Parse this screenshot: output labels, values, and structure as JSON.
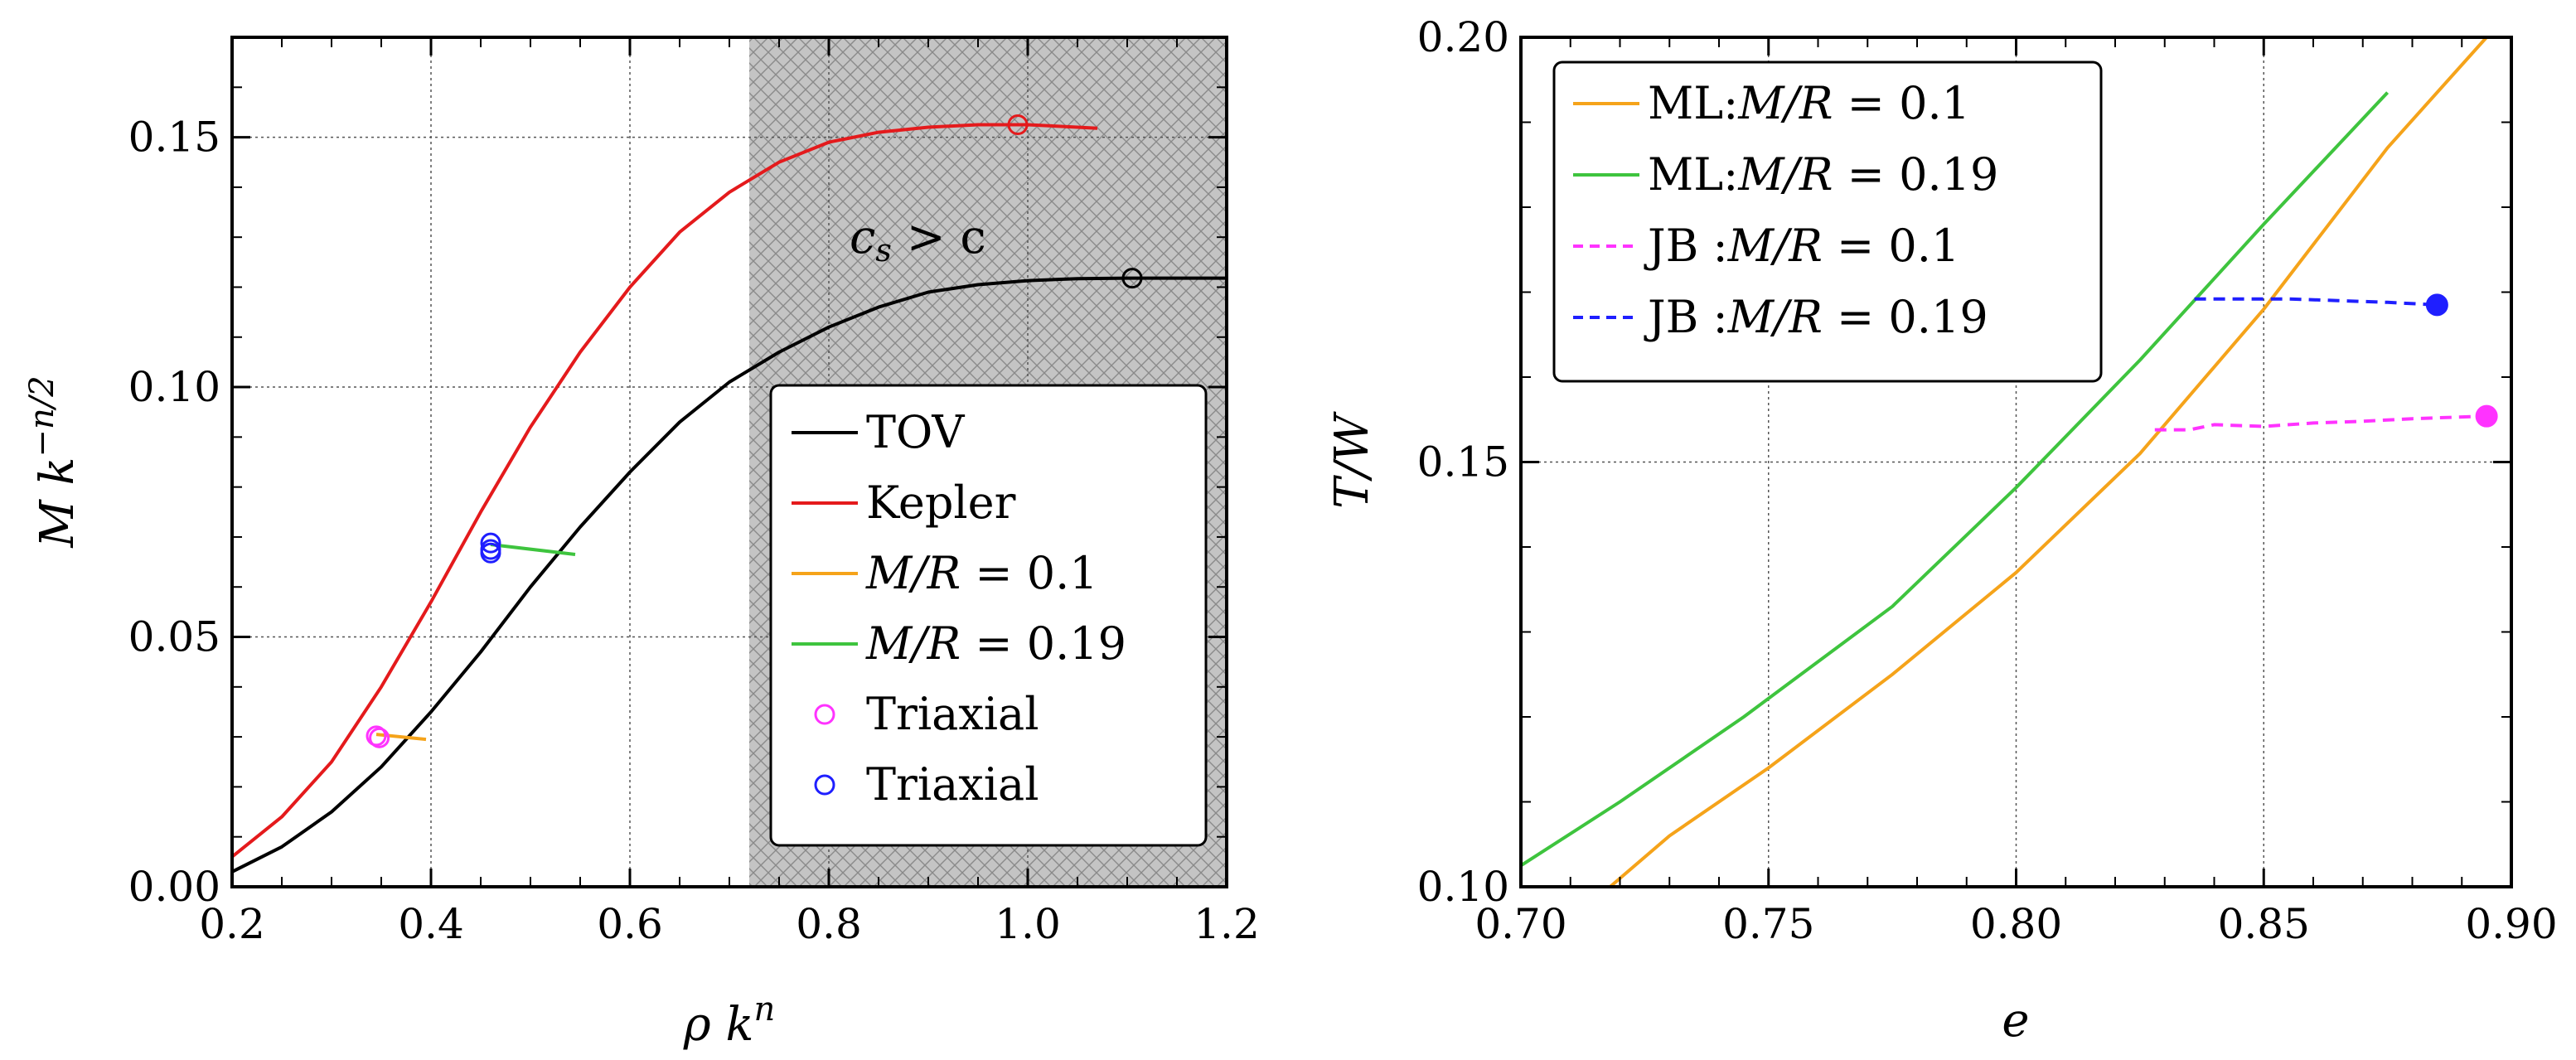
{
  "chart_data": [
    {
      "type": "line",
      "xlabel": "ρ k",
      "xlabel_sup": "n",
      "ylabel": "M k",
      "ylabel_sup": "−n/2",
      "xlim": [
        0.2,
        1.2
      ],
      "ylim": [
        0.0,
        0.17
      ],
      "grid": true,
      "xticks": [
        0.2,
        0.4,
        0.6,
        0.8,
        1.0,
        1.2
      ],
      "xtick_labels": [
        "0.2",
        "0.4",
        "0.6",
        "0.8",
        "1.0",
        "1.2"
      ],
      "yticks": [
        0.0,
        0.05,
        0.1,
        0.15
      ],
      "ytick_labels": [
        "0.00",
        "0.05",
        "0.10",
        "0.15"
      ],
      "shaded_region": {
        "x": [
          0.72,
          1.2
        ],
        "label_main": "c",
        "label_sub": "s",
        "label_rest": " > c"
      },
      "series": [
        {
          "name": "TOV",
          "style": "solid",
          "color": "#000000",
          "x": [
            0.2,
            0.25,
            0.3,
            0.35,
            0.4,
            0.45,
            0.5,
            0.55,
            0.6,
            0.65,
            0.7,
            0.75,
            0.8,
            0.85,
            0.9,
            0.95,
            1.0,
            1.05,
            1.1,
            1.15,
            1.2
          ],
          "y": [
            0.003,
            0.008,
            0.015,
            0.024,
            0.035,
            0.047,
            0.06,
            0.072,
            0.083,
            0.093,
            0.101,
            0.107,
            0.112,
            0.116,
            0.119,
            0.1205,
            0.1213,
            0.1217,
            0.1218,
            0.1218,
            0.1218
          ]
        },
        {
          "name": "Kepler",
          "style": "solid",
          "color": "#e41a1c",
          "x": [
            0.2,
            0.25,
            0.3,
            0.35,
            0.4,
            0.45,
            0.5,
            0.55,
            0.6,
            0.65,
            0.7,
            0.75,
            0.8,
            0.85,
            0.9,
            0.95,
            1.0,
            1.05,
            1.07
          ],
          "y": [
            0.006,
            0.014,
            0.025,
            0.04,
            0.057,
            0.075,
            0.092,
            0.107,
            0.12,
            0.131,
            0.139,
            0.145,
            0.149,
            0.151,
            0.152,
            0.1525,
            0.1525,
            0.152,
            0.1518
          ]
        },
        {
          "name": "M/R = 0.1",
          "label_a": "M/R",
          "label_b": " = 0.1",
          "style": "solid",
          "color": "#f5a31a",
          "x": [
            0.345,
            0.395
          ],
          "y": [
            0.0305,
            0.0295
          ]
        },
        {
          "name": "M/R = 0.19",
          "label_a": "M/R",
          "label_b": " = 0.19",
          "style": "solid",
          "color": "#3ec43e",
          "x": [
            0.46,
            0.545
          ],
          "y": [
            0.0685,
            0.0665
          ]
        }
      ],
      "markers": [
        {
          "name": "Triaxial",
          "color": "#ff33ff",
          "fill": "none",
          "points": [
            [
              0.345,
              0.0302
            ],
            [
              0.348,
              0.0298
            ]
          ]
        },
        {
          "name": "Triaxial",
          "color": "#1f1fff",
          "fill": "none",
          "points": [
            [
              0.46,
              0.0688
            ],
            [
              0.46,
              0.0675
            ],
            [
              0.46,
              0.0668
            ]
          ]
        },
        {
          "name": "kepler-max",
          "color": "#e41a1c",
          "fill": "none",
          "points": [
            [
              0.99,
              0.1525
            ]
          ],
          "in_legend": false
        },
        {
          "name": "tov-max",
          "color": "#000000",
          "fill": "none",
          "points": [
            [
              1.105,
              0.1218
            ]
          ],
          "in_legend": false
        }
      ],
      "legend": {
        "position": "lower-right",
        "entries": [
          {
            "kind": "line",
            "color": "#000000",
            "text": "TOV"
          },
          {
            "kind": "line",
            "color": "#e41a1c",
            "text": "Kepler"
          },
          {
            "kind": "line",
            "color": "#f5a31a",
            "text_a": "M/R",
            "text_b": " = 0.1"
          },
          {
            "kind": "line",
            "color": "#3ec43e",
            "text_a": "M/R",
            "text_b": " = 0.19"
          },
          {
            "kind": "marker",
            "color": "#ff33ff",
            "text": "Triaxial"
          },
          {
            "kind": "marker",
            "color": "#1f1fff",
            "text": "Triaxial"
          }
        ]
      }
    },
    {
      "type": "line",
      "xlabel": "e",
      "ylabel": "T/W",
      "xlim": [
        0.7,
        0.9
      ],
      "ylim": [
        0.1,
        0.2
      ],
      "grid": true,
      "xticks": [
        0.7,
        0.75,
        0.8,
        0.85,
        0.9
      ],
      "xtick_labels": [
        "0.70",
        "0.75",
        "0.80",
        "0.85",
        "0.90"
      ],
      "yticks": [
        0.1,
        0.15,
        0.2
      ],
      "ytick_labels": [
        "0.10",
        "0.15",
        "0.20"
      ],
      "series": [
        {
          "name": "ML:M/R = 0.1",
          "style": "solid",
          "color": "#f5a31a",
          "x": [
            0.718,
            0.73,
            0.75,
            0.775,
            0.8,
            0.825,
            0.85,
            0.875,
            0.895
          ],
          "y": [
            0.1,
            0.106,
            0.114,
            0.125,
            0.137,
            0.151,
            0.168,
            0.187,
            0.2
          ]
        },
        {
          "name": "ML:M/R = 0.19",
          "style": "solid",
          "color": "#3ec43e",
          "x": [
            0.7,
            0.72,
            0.745,
            0.775,
            0.8,
            0.825,
            0.85,
            0.875
          ],
          "y": [
            0.1025,
            0.11,
            0.12,
            0.133,
            0.147,
            0.162,
            0.178,
            0.1935
          ]
        },
        {
          "name": "JB :M/R = 0.1",
          "style": "dashed",
          "color": "#ff33ff",
          "x": [
            0.828,
            0.835,
            0.84,
            0.85,
            0.86,
            0.87,
            0.88,
            0.895
          ],
          "y": [
            0.1538,
            0.1538,
            0.1544,
            0.1542,
            0.1546,
            0.1548,
            0.1551,
            0.1554
          ]
        },
        {
          "name": "JB :M/R = 0.19",
          "style": "dashed",
          "color": "#1f1fff",
          "x": [
            0.836,
            0.845,
            0.855,
            0.865,
            0.875,
            0.885
          ],
          "y": [
            0.1692,
            0.1692,
            0.1692,
            0.169,
            0.1688,
            0.1685
          ]
        }
      ],
      "markers": [
        {
          "name": "jb-0.1-end",
          "color": "#ff33ff",
          "fill": "solid",
          "points": [
            [
              0.895,
              0.1554
            ]
          ]
        },
        {
          "name": "jb-0.19-end",
          "color": "#1f1fff",
          "fill": "solid",
          "points": [
            [
              0.885,
              0.1685
            ]
          ]
        }
      ],
      "legend": {
        "position": "top-left",
        "entries": [
          {
            "kind": "line",
            "dash": false,
            "color": "#f5a31a",
            "pre": "ML:",
            "text_a": "M/R",
            "text_b": " = 0.1"
          },
          {
            "kind": "line",
            "dash": false,
            "color": "#3ec43e",
            "pre": "ML:",
            "text_a": "M/R",
            "text_b": " = 0.19"
          },
          {
            "kind": "line",
            "dash": true,
            "color": "#ff33ff",
            "pre": "JB :",
            "text_a": "M/R",
            "text_b": " = 0.1"
          },
          {
            "kind": "line",
            "dash": true,
            "color": "#1f1fff",
            "pre": "JB :",
            "text_a": "M/R",
            "text_b": " = 0.19"
          }
        ]
      }
    }
  ]
}
